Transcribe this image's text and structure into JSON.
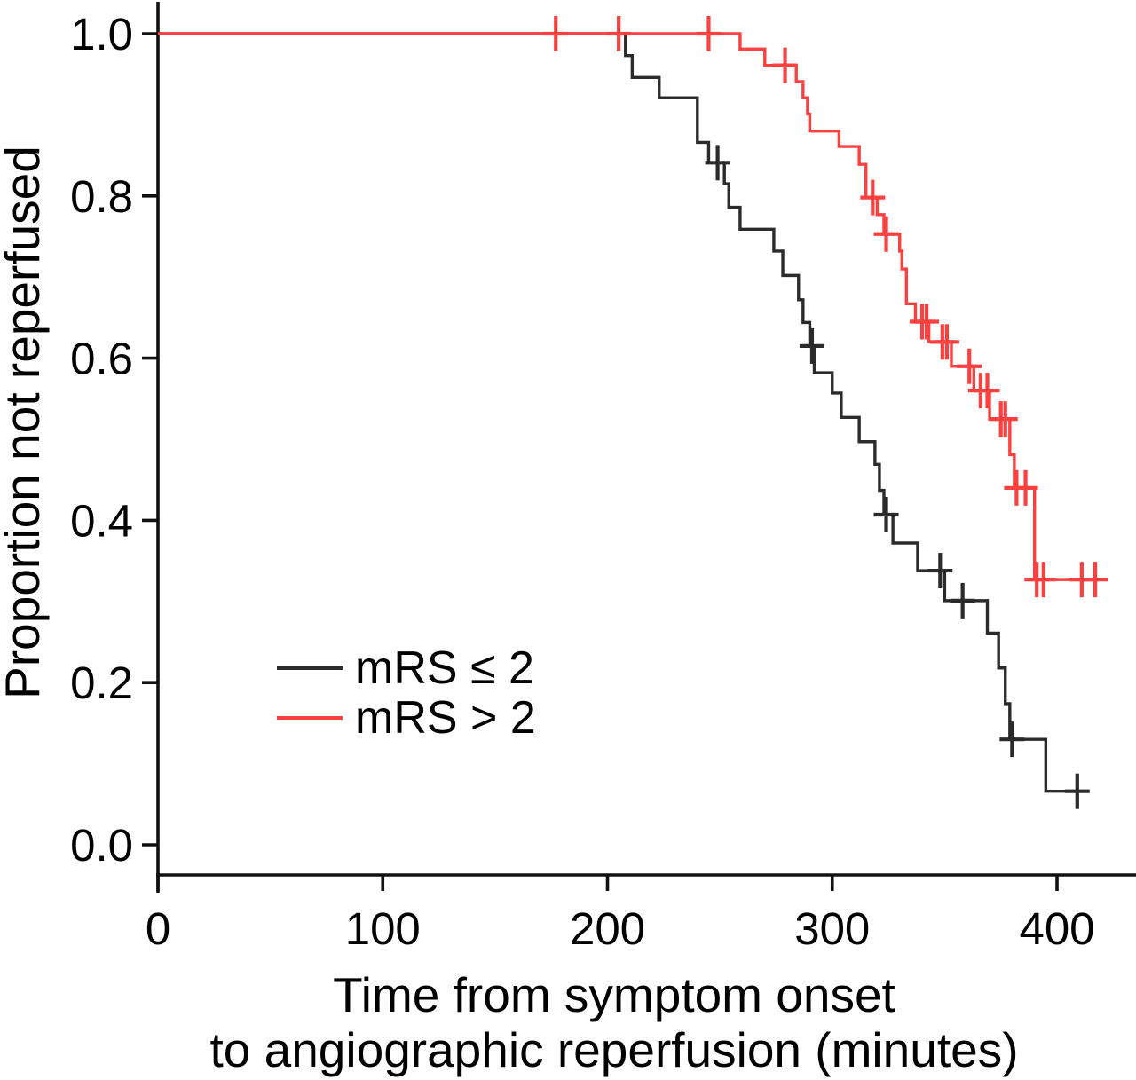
{
  "chart_data": {
    "type": "line",
    "chart_style": "kaplan-meier-step",
    "title": "",
    "ylabel": "Proportion not reperfused",
    "xlabel_lines": [
      "Time from symptom onset",
      "to angiographic reperfusion (minutes)"
    ],
    "xlim": [
      0,
      435
    ],
    "ylim": [
      0.0,
      1.0
    ],
    "grid": false,
    "x_ticks": [
      {
        "t": 0,
        "label": "0"
      },
      {
        "t": 100,
        "label": "100"
      },
      {
        "t": 200,
        "label": "200"
      },
      {
        "t": 300,
        "label": "300"
      },
      {
        "t": 400,
        "label": "400"
      }
    ],
    "y_ticks": [
      {
        "p": 1.0,
        "label": "1.0"
      },
      {
        "p": 0.8,
        "label": "0.8"
      },
      {
        "p": 0.6,
        "label": "0.6"
      },
      {
        "p": 0.4,
        "label": "0.4"
      },
      {
        "p": 0.2,
        "label": "0.2"
      },
      {
        "p": 0.0,
        "label": "0.0"
      }
    ],
    "legend": {
      "position": "inside-left-middle"
    },
    "series": [
      {
        "name": "mRS ≤ 2",
        "color": "#2b2b2b",
        "start": [
          0,
          1.0
        ],
        "steps": [
          [
            208,
            0.973
          ],
          [
            211,
            0.946
          ],
          [
            223,
            0.921
          ],
          [
            240,
            0.866
          ],
          [
            245,
            0.841
          ],
          [
            252,
            0.815
          ],
          [
            254,
            0.786
          ],
          [
            259,
            0.759
          ],
          [
            274,
            0.732
          ],
          [
            278,
            0.702
          ],
          [
            285,
            0.672
          ],
          [
            287,
            0.644
          ],
          [
            290,
            0.615
          ],
          [
            292,
            0.582
          ],
          [
            300,
            0.557
          ],
          [
            304,
            0.527
          ],
          [
            312,
            0.497
          ],
          [
            319,
            0.469
          ],
          [
            321,
            0.437
          ],
          [
            323,
            0.407
          ],
          [
            327,
            0.372
          ],
          [
            338,
            0.338
          ],
          [
            350,
            0.301
          ],
          [
            369,
            0.261
          ],
          [
            374,
            0.218
          ],
          [
            377,
            0.174
          ],
          [
            379,
            0.13
          ],
          [
            395,
            0.066
          ]
        ],
        "end_time": 413,
        "censors": [
          [
            249,
            0.841
          ],
          [
            291,
            0.615
          ],
          [
            324,
            0.407
          ],
          [
            348,
            0.338
          ],
          [
            358,
            0.301
          ],
          [
            380,
            0.13
          ],
          [
            409,
            0.066
          ]
        ]
      },
      {
        "name": "mRS > 2",
        "color": "#fb4040",
        "start": [
          0,
          1.0
        ],
        "steps": [
          [
            259,
            0.981
          ],
          [
            270,
            0.961
          ],
          [
            284,
            0.941
          ],
          [
            287,
            0.921
          ],
          [
            289,
            0.901
          ],
          [
            290,
            0.88
          ],
          [
            303,
            0.861
          ],
          [
            312,
            0.839
          ],
          [
            315,
            0.798
          ],
          [
            320,
            0.777
          ],
          [
            323,
            0.753
          ],
          [
            330,
            0.732
          ],
          [
            331,
            0.71
          ],
          [
            333,
            0.667
          ],
          [
            337,
            0.645
          ],
          [
            343,
            0.62
          ],
          [
            353,
            0.59
          ],
          [
            363,
            0.56
          ],
          [
            370,
            0.525
          ],
          [
            379,
            0.481
          ],
          [
            381,
            0.44
          ],
          [
            390,
            0.327
          ]
        ],
        "end_time": 421,
        "censors": [
          [
            177,
            1.0
          ],
          [
            205,
            1.0
          ],
          [
            245,
            1.0
          ],
          [
            279,
            0.961
          ],
          [
            318,
            0.798
          ],
          [
            324,
            0.753
          ],
          [
            340,
            0.645
          ],
          [
            342,
            0.645
          ],
          [
            349,
            0.62
          ],
          [
            351,
            0.62
          ],
          [
            361,
            0.59
          ],
          [
            366,
            0.56
          ],
          [
            369,
            0.56
          ],
          [
            375,
            0.525
          ],
          [
            377,
            0.525
          ],
          [
            382,
            0.44
          ],
          [
            386,
            0.44
          ],
          [
            391,
            0.327
          ],
          [
            394,
            0.327
          ],
          [
            411,
            0.327
          ],
          [
            417,
            0.327
          ]
        ]
      }
    ]
  }
}
